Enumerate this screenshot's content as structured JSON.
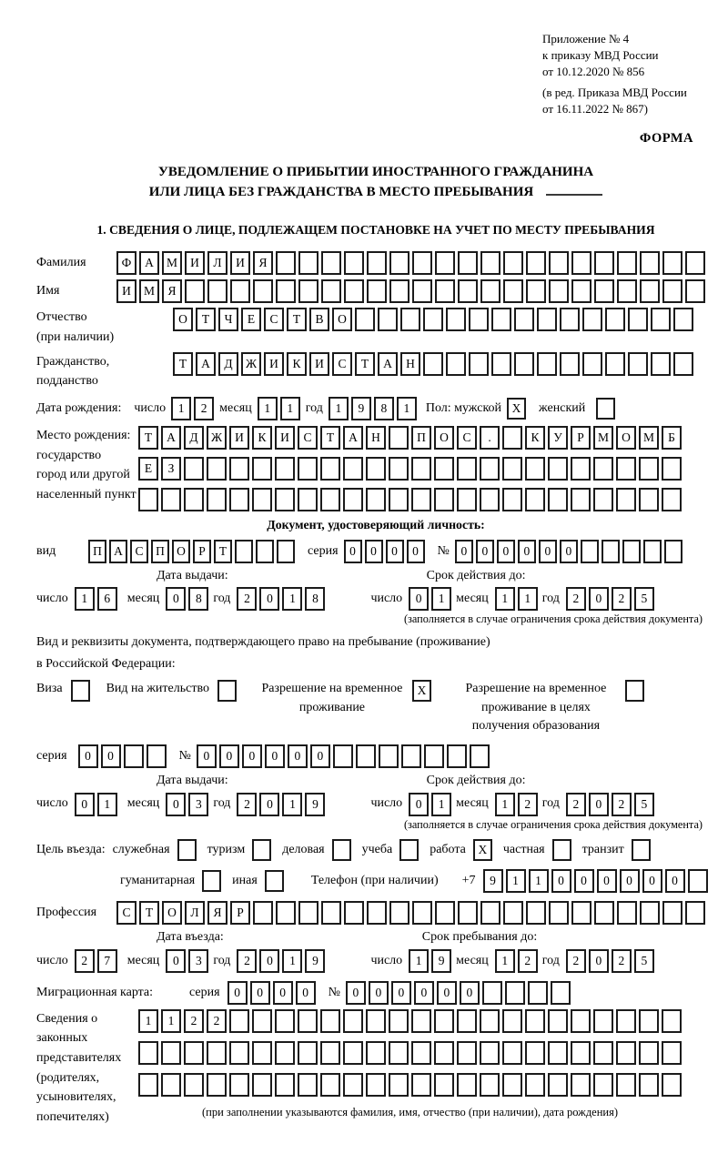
{
  "header": {
    "annex": [
      "Приложение № 4",
      "к приказу МВД России",
      "от 10.12.2020 № 856"
    ],
    "amendment": [
      "(в ред. Приказа МВД России",
      "от 16.11.2022 № 867)"
    ],
    "form_label": "ФОРМА"
  },
  "title": {
    "line1": "УВЕДОМЛЕНИЕ О ПРИБЫТИИ ИНОСТРАННОГО ГРАЖДАНИНА",
    "line2": "ИЛИ ЛИЦА БЕЗ ГРАЖДАНСТВА В МЕСТО ПРЕБЫВАНИЯ"
  },
  "section1": {
    "heading": "1. СВЕДЕНИЯ О ЛИЦЕ, ПОДЛЕЖАЩЕМ ПОСТАНОВКЕ НА УЧЕТ ПО МЕСТУ ПРЕБЫВАНИЯ"
  },
  "date_labels": {
    "day": "число",
    "month": "месяц",
    "year": "год"
  },
  "common": {
    "series": "серия",
    "number": "№",
    "issue_date": "Дата выдачи:",
    "valid_until": "Срок действия до:",
    "note_limited": "(заполняется в случае ограничения срока действия документа)"
  },
  "fields": {
    "surname": {
      "label": "Фамилия",
      "value": "ФАМИЛИЯ"
    },
    "given_name": {
      "label": "Имя",
      "value": "ИМЯ"
    },
    "patronymic": {
      "label": "Отчество",
      "label2": "(при наличии)",
      "value": "ОТЧЕСТВО"
    },
    "citizenship": {
      "label": "Гражданство,",
      "label2": "подданство",
      "value": "ТАДЖИКИСТАН"
    },
    "birth_date": {
      "label": "Дата рождения:",
      "day": "12",
      "month": "11",
      "year": "1981"
    },
    "sex": {
      "label": "Пол: мужской",
      "male_value": "X",
      "female_label": "женский",
      "female_value": ""
    },
    "birth_place": {
      "label_lines": [
        "Место рождения:",
        "государство",
        "город или другой",
        "населенный пункт"
      ],
      "row1": "ТАДЖИКИСТАН ПОС. КУРМОМБ",
      "row2": "ЕЗ",
      "row3": ""
    },
    "identity_doc": {
      "heading": "Документ, удостоверяющий личность:",
      "kind_label": "вид",
      "kind": "ПАСПОРТ",
      "series": "0000",
      "number": "000000",
      "issue": {
        "day": "16",
        "month": "08",
        "year": "2018"
      },
      "valid": {
        "day": "01",
        "month": "11",
        "year": "2025"
      }
    },
    "residence_doc": {
      "intro1": "Вид и реквизиты документа, подтверждающего право на пребывание (проживание)",
      "intro2": "в Российской Федерации:",
      "options": [
        {
          "label": "Виза",
          "value": ""
        },
        {
          "label": "Вид на жительство",
          "value": ""
        },
        {
          "label": "Разрешение на временное проживание",
          "value": "X"
        },
        {
          "label": "Разрешение на временное проживание в целях получения образования",
          "value": ""
        }
      ],
      "series": "00",
      "number": "000000",
      "issue": {
        "day": "01",
        "month": "03",
        "year": "2019"
      },
      "valid": {
        "day": "01",
        "month": "12",
        "year": "2025"
      }
    },
    "purpose": {
      "label": "Цель въезда:",
      "options": [
        {
          "label": "служебная",
          "value": ""
        },
        {
          "label": "туризм",
          "value": ""
        },
        {
          "label": "деловая",
          "value": ""
        },
        {
          "label": "учеба",
          "value": ""
        },
        {
          "label": "работа",
          "value": "X"
        },
        {
          "label": "частная",
          "value": ""
        },
        {
          "label": "транзит",
          "value": ""
        },
        {
          "label": "гуманитарная",
          "value": ""
        },
        {
          "label": "иная",
          "value": ""
        }
      ]
    },
    "phone": {
      "label": "Телефон (при наличии)",
      "prefix": "+7",
      "value": "911000000"
    },
    "profession": {
      "label": "Профессия",
      "value": "СТОЛЯР"
    },
    "entry": {
      "heading": "Дата въезда:",
      "day": "27",
      "month": "03",
      "year": "2019"
    },
    "stay_until": {
      "heading": "Срок пребывания до:",
      "day": "19",
      "month": "12",
      "year": "2025"
    },
    "migration_card": {
      "label": "Миграционная карта:",
      "series": "0000",
      "number": "000000"
    },
    "representatives": {
      "label_lines": [
        "Сведения о",
        "законных",
        "представителях",
        "(родителях,",
        "усыновителях,",
        "попечителях)"
      ],
      "row1": "1122",
      "row2": "",
      "row3": "",
      "note": "(при заполнении указываются фамилия, имя, отчество (при наличии), дата рождения)"
    }
  }
}
